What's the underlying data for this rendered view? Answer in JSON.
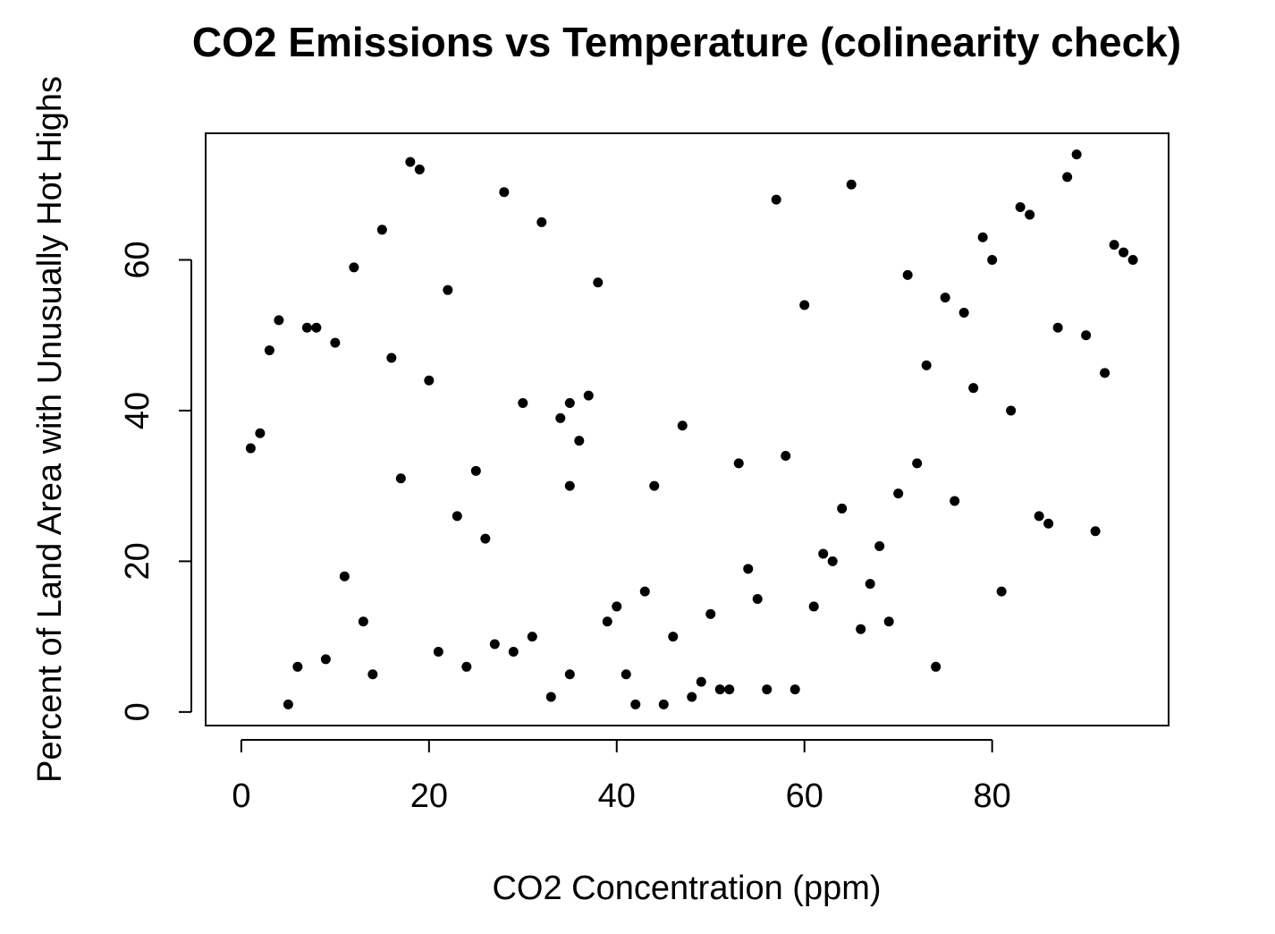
{
  "chart_data": {
    "type": "scatter",
    "title": "CO2 Emissions vs Temperature (colinearity check)",
    "xlabel": "CO2 Concentration (ppm)",
    "ylabel": "Percent of Land Area with Unusually Hot Highs",
    "xlim": [
      -3.8,
      98.8
    ],
    "ylim": [
      -1.8,
      76.8
    ],
    "x_ticks": [
      0,
      20,
      40,
      60,
      80
    ],
    "y_ticks": [
      0,
      20,
      40,
      60
    ],
    "grid": false,
    "legend": "none",
    "points": [
      [
        1,
        35
      ],
      [
        2,
        37
      ],
      [
        3,
        48
      ],
      [
        4,
        52
      ],
      [
        5,
        1
      ],
      [
        6,
        6
      ],
      [
        7,
        51
      ],
      [
        8,
        51
      ],
      [
        9,
        7
      ],
      [
        10,
        49
      ],
      [
        11,
        18
      ],
      [
        12,
        59
      ],
      [
        13,
        12
      ],
      [
        14,
        5
      ],
      [
        15,
        64
      ],
      [
        16,
        47
      ],
      [
        17,
        31
      ],
      [
        18,
        73
      ],
      [
        19,
        72
      ],
      [
        20,
        44
      ],
      [
        21,
        8
      ],
      [
        22,
        56
      ],
      [
        23,
        26
      ],
      [
        24,
        6
      ],
      [
        25,
        32
      ],
      [
        26,
        23
      ],
      [
        27,
        9
      ],
      [
        28,
        69
      ],
      [
        29,
        8
      ],
      [
        30,
        41
      ],
      [
        31,
        10
      ],
      [
        32,
        65
      ],
      [
        33,
        2
      ],
      [
        34,
        39
      ],
      [
        35,
        30
      ],
      [
        35,
        41
      ],
      [
        35,
        5
      ],
      [
        36,
        36
      ],
      [
        37,
        42
      ],
      [
        38,
        57
      ],
      [
        39,
        12
      ],
      [
        40,
        14
      ],
      [
        41,
        5
      ],
      [
        42,
        1
      ],
      [
        43,
        16
      ],
      [
        44,
        30
      ],
      [
        45,
        1
      ],
      [
        46,
        10
      ],
      [
        47,
        38
      ],
      [
        48,
        2
      ],
      [
        49,
        4
      ],
      [
        50,
        13
      ],
      [
        51,
        3
      ],
      [
        52,
        3
      ],
      [
        53,
        33
      ],
      [
        54,
        19
      ],
      [
        55,
        15
      ],
      [
        56,
        3
      ],
      [
        57,
        68
      ],
      [
        58,
        34
      ],
      [
        59,
        3
      ],
      [
        60,
        54
      ],
      [
        61,
        14
      ],
      [
        62,
        21
      ],
      [
        63,
        20
      ],
      [
        64,
        27
      ],
      [
        65,
        70
      ],
      [
        66,
        11
      ],
      [
        67,
        17
      ],
      [
        68,
        22
      ],
      [
        69,
        12
      ],
      [
        70,
        29
      ],
      [
        71,
        58
      ],
      [
        72,
        33
      ],
      [
        73,
        46
      ],
      [
        74,
        6
      ],
      [
        75,
        55
      ],
      [
        76,
        28
      ],
      [
        77,
        53
      ],
      [
        78,
        43
      ],
      [
        79,
        63
      ],
      [
        80,
        60
      ],
      [
        81,
        16
      ],
      [
        82,
        40
      ],
      [
        83,
        67
      ],
      [
        84,
        66
      ],
      [
        85,
        26
      ],
      [
        86,
        25
      ],
      [
        87,
        51
      ],
      [
        88,
        71
      ],
      [
        89,
        74
      ],
      [
        90,
        50
      ],
      [
        91,
        24
      ],
      [
        92,
        45
      ],
      [
        93,
        62
      ],
      [
        94,
        61
      ],
      [
        95,
        60
      ]
    ]
  }
}
